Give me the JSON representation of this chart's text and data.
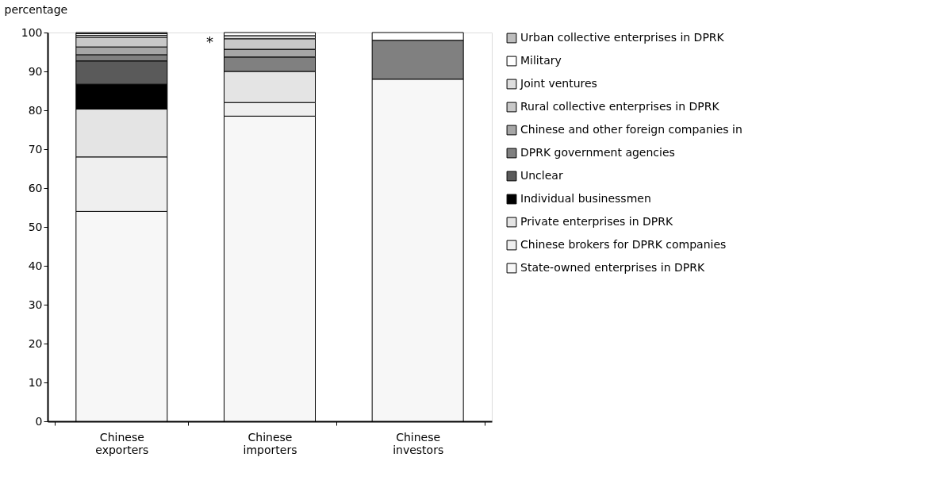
{
  "chart_data": {
    "type": "bar",
    "stacked": true,
    "ylabel": "percentage",
    "categories": [
      "Chinese exporters",
      "Chinese importers",
      "Chinese investors"
    ],
    "ylim": [
      0,
      100
    ],
    "yticks": [
      0,
      10,
      20,
      30,
      40,
      50,
      60,
      70,
      80,
      90,
      100
    ],
    "grid": false,
    "legend": "right",
    "series": [
      {
        "name": "State-owned enterprises in DPRK",
        "color": "#f7f7f7",
        "values": [
          54,
          78.5,
          88
        ]
      },
      {
        "name": "Chinese brokers for DPRK companies",
        "color": "#efefef",
        "values": [
          14,
          3.5,
          0
        ]
      },
      {
        "name": "Private enterprises in DPRK",
        "color": "#e4e4e4",
        "values": [
          12.3,
          8,
          0
        ]
      },
      {
        "name": "Individual businessmen",
        "color": "#000000",
        "values": [
          6.4,
          0,
          0
        ]
      },
      {
        "name": "Unclear",
        "color": "#5a5a5a",
        "values": [
          6,
          0,
          0
        ]
      },
      {
        "name": "DPRK government agencies",
        "color": "#808080",
        "values": [
          1.6,
          3.7,
          10
        ]
      },
      {
        "name": "Chinese and other foreign companies in",
        "color": "#a6a6a6",
        "values": [
          2,
          2,
          0
        ]
      },
      {
        "name": "Rural collective enterprises in DPRK",
        "color": "#c8c8c8",
        "values": [
          2.5,
          2.7,
          0
        ]
      },
      {
        "name": "Joint ventures",
        "color": "#dedede",
        "values": [
          0.5,
          0.8,
          0
        ]
      },
      {
        "name": "Military",
        "color": "#ffffff",
        "values": [
          0.4,
          0.8,
          2
        ]
      },
      {
        "name": "Urban collective enterprises in DPRK",
        "color": "#bdbdbd",
        "values": [
          0.3,
          0,
          0
        ]
      }
    ],
    "annotations": [
      "*"
    ]
  }
}
